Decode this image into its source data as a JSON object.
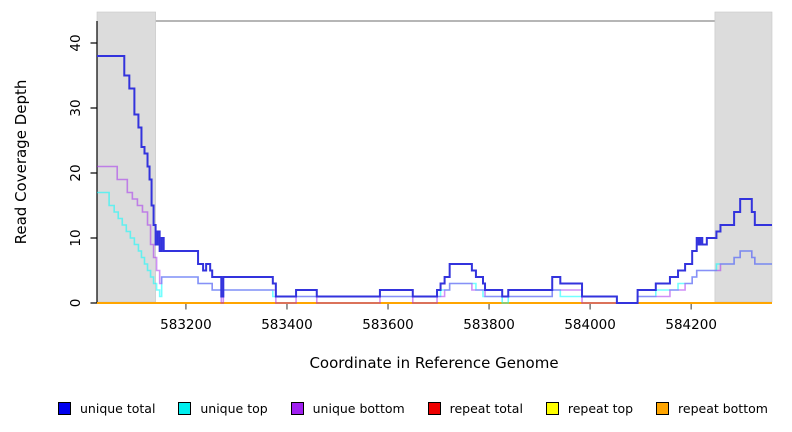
{
  "figure": {
    "background": "#ffffff",
    "plot_background": "#ffffff",
    "border_color": "#6e6e6e",
    "axis_color": "#000000"
  },
  "chart_data": {
    "type": "line",
    "subtype": "step-after",
    "title": "",
    "xlabel": "Coordinate in Reference Genome",
    "ylabel": "Read Coverage Depth",
    "xlim": [
      583024,
      584360
    ],
    "ylim": [
      0,
      43
    ],
    "x_ticks": [
      583200,
      583400,
      583600,
      583800,
      584000,
      584200
    ],
    "y_ticks": [
      0,
      10,
      20,
      30,
      40
    ],
    "grid": false,
    "legend_position": "bottom",
    "highlight_regions": [
      {
        "name": "left-repeat-region",
        "start": 583024,
        "end": 583140,
        "fill": "#DCDCDC"
      },
      {
        "name": "right-repeat-region",
        "start": 584247,
        "end": 584360,
        "fill": "#DCDCDC"
      }
    ],
    "series": [
      {
        "name": "unique total",
        "legend_color": "#0000EE",
        "line_color": "#3333DD",
        "opacity": 1,
        "line_width": 2,
        "z": 6,
        "points": [
          [
            583024,
            38
          ],
          [
            583078,
            35
          ],
          [
            583088,
            33
          ],
          [
            583098,
            29
          ],
          [
            583106,
            27
          ],
          [
            583112,
            24
          ],
          [
            583118,
            23
          ],
          [
            583124,
            21
          ],
          [
            583128,
            19
          ],
          [
            583132,
            15
          ],
          [
            583136,
            12
          ],
          [
            583140,
            9
          ],
          [
            583144,
            11
          ],
          [
            583148,
            8
          ],
          [
            583152,
            10
          ],
          [
            583156,
            8
          ],
          [
            583224,
            6
          ],
          [
            583234,
            5
          ],
          [
            583240,
            6
          ],
          [
            583248,
            5
          ],
          [
            583252,
            4
          ],
          [
            583270,
            1
          ],
          [
            583274,
            4
          ],
          [
            583372,
            3
          ],
          [
            583378,
            1
          ],
          [
            583418,
            2
          ],
          [
            583459,
            1
          ],
          [
            583584,
            2
          ],
          [
            583649,
            1
          ],
          [
            583697,
            2
          ],
          [
            583704,
            3
          ],
          [
            583712,
            4
          ],
          [
            583722,
            6
          ],
          [
            583766,
            5
          ],
          [
            583774,
            4
          ],
          [
            583788,
            3
          ],
          [
            583792,
            2
          ],
          [
            583826,
            1
          ],
          [
            583838,
            2
          ],
          [
            583925,
            4
          ],
          [
            583941,
            3
          ],
          [
            583984,
            1
          ],
          [
            584053,
            0
          ],
          [
            584094,
            2
          ],
          [
            584130,
            3
          ],
          [
            584158,
            4
          ],
          [
            584174,
            5
          ],
          [
            584188,
            6
          ],
          [
            584202,
            8
          ],
          [
            584211,
            10
          ],
          [
            584215,
            9
          ],
          [
            584218,
            10
          ],
          [
            584222,
            9
          ],
          [
            584231,
            10
          ],
          [
            584250,
            11
          ],
          [
            584258,
            12
          ],
          [
            584285,
            14
          ],
          [
            584297,
            16
          ],
          [
            584320,
            14
          ],
          [
            584326,
            12
          ]
        ]
      },
      {
        "name": "unique top",
        "legend_color": "#00EEEE",
        "line_color": "#00FFFF",
        "opacity": 0.55,
        "line_width": 1.6,
        "z": 4,
        "points": [
          [
            583024,
            17
          ],
          [
            583048,
            15
          ],
          [
            583058,
            14
          ],
          [
            583066,
            13
          ],
          [
            583074,
            12
          ],
          [
            583082,
            11
          ],
          [
            583090,
            10
          ],
          [
            583098,
            9
          ],
          [
            583106,
            8
          ],
          [
            583112,
            7
          ],
          [
            583118,
            6
          ],
          [
            583124,
            5
          ],
          [
            583130,
            4
          ],
          [
            583136,
            3
          ],
          [
            583142,
            2
          ],
          [
            583148,
            1
          ],
          [
            583152,
            4
          ],
          [
            583224,
            3
          ],
          [
            583252,
            2
          ],
          [
            583270,
            1
          ],
          [
            583274,
            2
          ],
          [
            583372,
            1
          ],
          [
            583459,
            1
          ],
          [
            583584,
            1
          ],
          [
            583697,
            1
          ],
          [
            583704,
            2
          ],
          [
            583722,
            3
          ],
          [
            583774,
            2
          ],
          [
            583788,
            1
          ],
          [
            583826,
            0
          ],
          [
            583838,
            1
          ],
          [
            583925,
            2
          ],
          [
            583941,
            1
          ],
          [
            583984,
            1
          ],
          [
            584053,
            0
          ],
          [
            584094,
            1
          ],
          [
            584130,
            2
          ],
          [
            584174,
            3
          ],
          [
            584202,
            4
          ],
          [
            584211,
            5
          ],
          [
            584250,
            6
          ],
          [
            584285,
            7
          ],
          [
            584297,
            8
          ],
          [
            584320,
            7
          ],
          [
            584326,
            6
          ]
        ]
      },
      {
        "name": "unique bottom",
        "legend_color": "#A020F0",
        "line_color": "#A020F0",
        "opacity": 0.5,
        "line_width": 1.6,
        "z": 5,
        "points": [
          [
            583024,
            21
          ],
          [
            583064,
            19
          ],
          [
            583084,
            17
          ],
          [
            583094,
            16
          ],
          [
            583104,
            15
          ],
          [
            583114,
            14
          ],
          [
            583124,
            12
          ],
          [
            583130,
            9
          ],
          [
            583136,
            7
          ],
          [
            583142,
            5
          ],
          [
            583148,
            3
          ],
          [
            583152,
            4
          ],
          [
            583224,
            3
          ],
          [
            583252,
            2
          ],
          [
            583270,
            0
          ],
          [
            583274,
            2
          ],
          [
            583378,
            0
          ],
          [
            583418,
            1
          ],
          [
            583459,
            0
          ],
          [
            583584,
            1
          ],
          [
            583649,
            0
          ],
          [
            583697,
            1
          ],
          [
            583712,
            2
          ],
          [
            583722,
            3
          ],
          [
            583766,
            2
          ],
          [
            583788,
            2
          ],
          [
            583792,
            1
          ],
          [
            583826,
            1
          ],
          [
            583925,
            2
          ],
          [
            583984,
            0
          ],
          [
            584094,
            1
          ],
          [
            584158,
            2
          ],
          [
            584188,
            3
          ],
          [
            584202,
            4
          ],
          [
            584211,
            5
          ],
          [
            584250,
            5
          ],
          [
            584258,
            6
          ],
          [
            584285,
            7
          ],
          [
            584297,
            8
          ],
          [
            584320,
            7
          ],
          [
            584326,
            6
          ]
        ]
      },
      {
        "name": "repeat total",
        "legend_color": "#EE0000",
        "line_color": "#E60000",
        "opacity": 1,
        "line_width": 2,
        "z": 1,
        "points": [
          [
            583024,
            0
          ]
        ]
      },
      {
        "name": "repeat top",
        "legend_color": "#FFFF00",
        "line_color": "#FFFF00",
        "opacity": 1,
        "line_width": 2,
        "z": 2,
        "points": [
          [
            583024,
            0
          ]
        ]
      },
      {
        "name": "repeat bottom",
        "legend_color": "#FFA500",
        "line_color": "#FFA500",
        "opacity": 1,
        "line_width": 2,
        "z": 3,
        "points": [
          [
            583024,
            0
          ]
        ]
      }
    ]
  }
}
